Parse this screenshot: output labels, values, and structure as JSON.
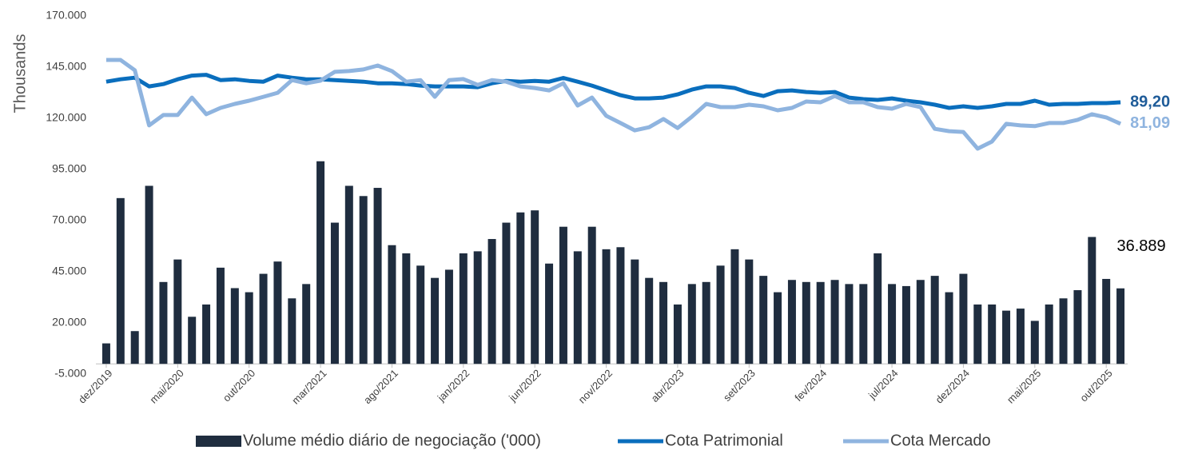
{
  "chart_data": {
    "type": "combo",
    "y_axis_label": "Thousands",
    "categories": [
      "dez/2019",
      null,
      null,
      null,
      null,
      "mai/2020",
      null,
      null,
      null,
      null,
      "out/2020",
      null,
      null,
      null,
      null,
      "mar/2021",
      null,
      null,
      null,
      null,
      "ago/2021",
      null,
      null,
      null,
      null,
      "jan/2022",
      null,
      null,
      null,
      null,
      "jun/2022",
      null,
      null,
      null,
      null,
      "nov/2022",
      null,
      null,
      null,
      null,
      "abr/2023",
      null,
      null,
      null,
      null,
      "set/2023",
      null,
      null,
      null,
      null,
      "fev/2024",
      null,
      null,
      null,
      null,
      "jul/2024",
      null,
      null,
      null,
      null,
      "dez/2024",
      null,
      null,
      null,
      null,
      "mai/2025",
      null,
      null,
      null,
      null,
      "out/2025",
      null
    ],
    "ylim": [
      -5000,
      170000
    ],
    "yticks": [
      {
        "value": -5000,
        "label": "-5.000"
      },
      {
        "value": 20000,
        "label": "20.000"
      },
      {
        "value": 45000,
        "label": "45.000"
      },
      {
        "value": 70000,
        "label": "70.000"
      },
      {
        "value": 95000,
        "label": "95.000"
      },
      {
        "value": 120000,
        "label": "120.000"
      },
      {
        "value": 145000,
        "label": "145.000"
      },
      {
        "value": 170000,
        "label": "170.000"
      }
    ],
    "y2lim": [
      -13.4,
      121.8
    ],
    "legend": "bottom",
    "series": [
      {
        "name": "Volume médio diário de negociação ('000)",
        "type": "bar",
        "color": "#1f2d3f",
        "values": [
          10000,
          81000,
          16000,
          87000,
          40000,
          51000,
          23000,
          29000,
          47000,
          37000,
          35000,
          44000,
          50000,
          32000,
          39000,
          99000,
          69000,
          87000,
          82000,
          86000,
          58000,
          54000,
          48000,
          42000,
          46000,
          54000,
          55000,
          61000,
          69000,
          74000,
          75000,
          49000,
          67000,
          55000,
          67000,
          56000,
          57000,
          51000,
          42000,
          40000,
          29000,
          39000,
          40000,
          48000,
          56000,
          51000,
          43000,
          35000,
          41000,
          40000,
          40000,
          41000,
          39000,
          39000,
          54000,
          39000,
          38000,
          41000,
          43000,
          35000,
          44000,
          29000,
          29000,
          26000,
          27000,
          21000,
          29000,
          32000,
          36000,
          62000,
          41500,
          36889
        ],
        "value_labels": [
          null,
          null,
          null,
          null,
          null,
          null,
          null,
          null,
          null,
          null,
          null,
          null,
          null,
          null,
          null,
          null,
          null,
          null,
          null,
          null,
          null,
          null,
          null,
          null,
          null,
          null,
          null,
          null,
          null,
          null,
          null,
          null,
          null,
          null,
          null,
          null,
          null,
          null,
          null,
          null,
          null,
          null,
          null,
          null,
          null,
          null,
          null,
          null,
          null,
          null,
          null,
          null,
          null,
          null,
          null,
          null,
          null,
          null,
          null,
          null,
          null,
          null,
          null,
          null,
          null,
          null,
          null,
          null,
          null,
          null,
          null,
          "36.889"
        ],
        "label_color": "#000000"
      },
      {
        "name": "Cota Patrimonial",
        "type": "line",
        "axis": "y2",
        "color": "#0a6ebd",
        "values": [
          97.0,
          97.9,
          98.5,
          95.2,
          96.1,
          97.9,
          99.3,
          99.6,
          97.6,
          97.9,
          97.3,
          97.0,
          99.3,
          98.5,
          97.9,
          97.9,
          97.6,
          97.3,
          97.0,
          96.4,
          96.4,
          96.1,
          95.5,
          95.2,
          95.2,
          95.2,
          94.9,
          96.4,
          97.3,
          97.0,
          97.3,
          97.0,
          98.4,
          97.0,
          95.5,
          93.7,
          91.9,
          90.7,
          90.7,
          91.0,
          92.2,
          94.0,
          95.2,
          95.2,
          94.6,
          92.8,
          91.6,
          93.4,
          93.7,
          93.1,
          92.8,
          93.1,
          91.0,
          90.4,
          90.1,
          90.7,
          89.8,
          89.2,
          88.3,
          87.1,
          87.7,
          87.1,
          87.7,
          88.6,
          88.6,
          89.8,
          88.3,
          88.6,
          88.6,
          88.9,
          88.9,
          89.2
        ],
        "value_labels": [
          null,
          null,
          null,
          null,
          null,
          null,
          null,
          null,
          null,
          null,
          null,
          null,
          null,
          null,
          null,
          null,
          null,
          null,
          null,
          null,
          null,
          null,
          null,
          null,
          null,
          null,
          null,
          null,
          null,
          null,
          null,
          null,
          null,
          null,
          null,
          null,
          null,
          null,
          null,
          null,
          null,
          null,
          null,
          null,
          null,
          null,
          null,
          null,
          null,
          null,
          null,
          null,
          null,
          null,
          null,
          null,
          null,
          null,
          null,
          null,
          null,
          null,
          null,
          null,
          null,
          null,
          null,
          null,
          null,
          null,
          null,
          "89,20"
        ],
        "label_color": "#1f5c99"
      },
      {
        "name": "Cota Mercado",
        "type": "line",
        "axis": "y2",
        "color": "#8fb4df",
        "values": [
          105.2,
          105.2,
          101.3,
          80.5,
          84.4,
          84.4,
          91.0,
          84.7,
          87.1,
          88.6,
          89.8,
          91.3,
          92.8,
          97.6,
          96.4,
          97.4,
          100.7,
          101.0,
          101.6,
          103.1,
          101.0,
          97.0,
          97.6,
          91.3,
          97.6,
          98.0,
          95.8,
          97.6,
          97.0,
          95.2,
          94.6,
          93.7,
          96.4,
          88.0,
          91.0,
          84.1,
          81.4,
          78.6,
          79.8,
          82.9,
          79.5,
          83.8,
          88.6,
          87.4,
          87.4,
          88.3,
          87.7,
          86.2,
          87.1,
          89.5,
          89.2,
          91.6,
          89.2,
          89.2,
          87.4,
          86.8,
          88.6,
          87.4,
          79.2,
          78.3,
          78.0,
          71.7,
          74.4,
          81.1,
          80.5,
          80.2,
          81.4,
          81.4,
          82.6,
          84.7,
          83.5,
          81.09
        ],
        "value_labels": [
          null,
          null,
          null,
          null,
          null,
          null,
          null,
          null,
          null,
          null,
          null,
          null,
          null,
          null,
          null,
          null,
          null,
          null,
          null,
          null,
          null,
          null,
          null,
          null,
          null,
          null,
          null,
          null,
          null,
          null,
          null,
          null,
          null,
          null,
          null,
          null,
          null,
          null,
          null,
          null,
          null,
          null,
          null,
          null,
          null,
          null,
          null,
          null,
          null,
          null,
          null,
          null,
          null,
          null,
          null,
          null,
          null,
          null,
          null,
          null,
          null,
          null,
          null,
          null,
          null,
          null,
          null,
          null,
          null,
          null,
          null,
          "81,09"
        ],
        "label_color": "#8fb4df"
      }
    ]
  }
}
